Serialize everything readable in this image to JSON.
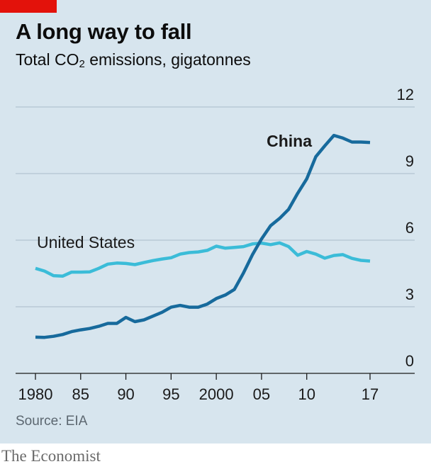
{
  "header": {
    "title": "A long way to fall",
    "subtitle_main": "Total CO",
    "subtitle_sub": "2",
    "subtitle_rest": " emissions, gigatonnes"
  },
  "footer": {
    "source": "Source: EIA",
    "brand": "The Economist"
  },
  "colors": {
    "background": "#d7e5ee",
    "tag": "#e3120b",
    "china": "#176a9c",
    "united_states": "#3bbcd8",
    "grid": "#a9bccb"
  },
  "chart_data": {
    "type": "line",
    "title": "A long way to fall",
    "ylabel": "Total CO2 emissions, gigatonnes",
    "xlim": [
      1980,
      2017
    ],
    "ylim": [
      0,
      12
    ],
    "y_ticks": [
      0,
      3,
      6,
      9,
      12
    ],
    "y_tick_labels": [
      "0",
      "3",
      "6",
      "9",
      "12"
    ],
    "x_ticks": [
      1980,
      1985,
      1990,
      1995,
      2000,
      2005,
      2010,
      2017
    ],
    "x_tick_labels": [
      "1980",
      "85",
      "90",
      "95",
      "2000",
      "05",
      "10",
      "17"
    ],
    "grid": true,
    "x": [
      1980,
      1981,
      1982,
      1983,
      1984,
      1985,
      1986,
      1987,
      1988,
      1989,
      1990,
      1991,
      1992,
      1993,
      1994,
      1995,
      1996,
      1997,
      1998,
      1999,
      2000,
      2001,
      2002,
      2003,
      2004,
      2005,
      2006,
      2007,
      2008,
      2009,
      2010,
      2011,
      2012,
      2013,
      2014,
      2015,
      2016,
      2017
    ],
    "series": [
      {
        "name": "China",
        "values": [
          1.63,
          1.62,
          1.67,
          1.75,
          1.88,
          1.96,
          2.02,
          2.12,
          2.25,
          2.25,
          2.52,
          2.33,
          2.41,
          2.58,
          2.75,
          2.98,
          3.06,
          2.98,
          2.98,
          3.12,
          3.37,
          3.53,
          3.78,
          4.52,
          5.35,
          6.05,
          6.65,
          6.98,
          7.39,
          8.11,
          8.76,
          9.76,
          10.25,
          10.72,
          10.6,
          10.42,
          10.42,
          10.4
        ]
      },
      {
        "name": "United States",
        "values": [
          4.73,
          4.61,
          4.4,
          4.38,
          4.56,
          4.56,
          4.57,
          4.73,
          4.92,
          4.97,
          4.95,
          4.9,
          4.99,
          5.08,
          5.15,
          5.21,
          5.37,
          5.44,
          5.47,
          5.54,
          5.73,
          5.64,
          5.67,
          5.71,
          5.83,
          5.87,
          5.8,
          5.88,
          5.71,
          5.32,
          5.49,
          5.37,
          5.19,
          5.31,
          5.35,
          5.18,
          5.09,
          5.06
        ]
      }
    ]
  }
}
